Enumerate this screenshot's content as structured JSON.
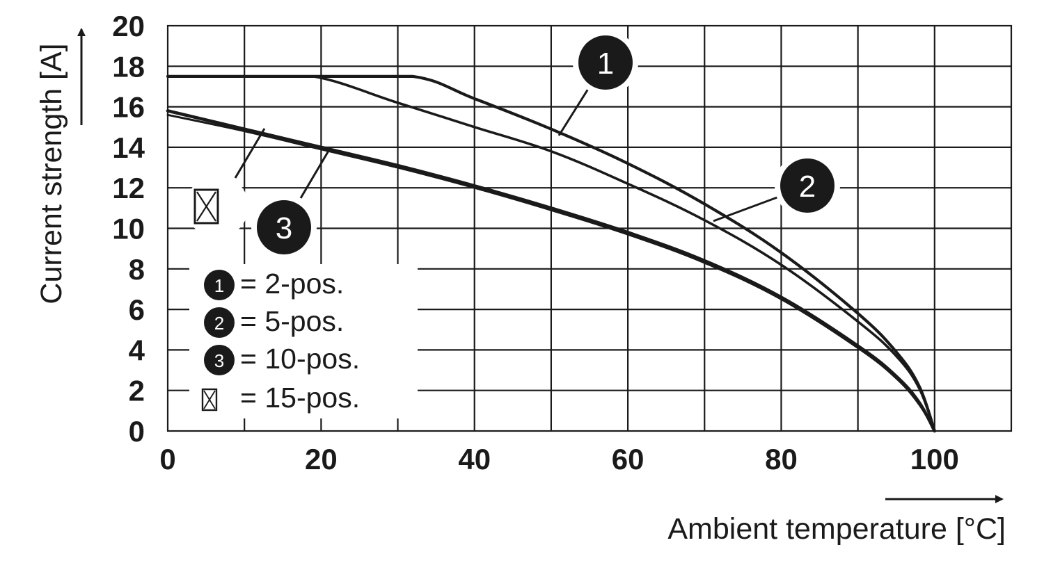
{
  "chart_data": {
    "type": "line",
    "xlabel": "Ambient temperature [°C]",
    "ylabel": "Current strength [A]",
    "xlim": [
      0,
      110
    ],
    "ylim": [
      0,
      20
    ],
    "x_ticks": [
      "0",
      "20",
      "40",
      "60",
      "80",
      "100"
    ],
    "y_ticks": [
      "0",
      "2",
      "4",
      "6",
      "8",
      "10",
      "12",
      "14",
      "16",
      "18",
      "20"
    ],
    "grid": true,
    "series": [
      {
        "marker": "1",
        "x": [
          0,
          10,
          20,
          32,
          40,
          50,
          60,
          70,
          80,
          90,
          95,
          98,
          100
        ],
        "y": [
          17.5,
          17.5,
          17.5,
          17.5,
          16.4,
          14.9,
          13.2,
          11.2,
          8.8,
          5.8,
          3.9,
          2.2,
          0
        ]
      },
      {
        "marker": "2",
        "x": [
          0,
          10,
          19,
          30,
          40,
          50,
          60,
          70,
          80,
          90,
          95,
          98,
          100
        ],
        "y": [
          17.5,
          17.5,
          17.5,
          16.2,
          15.0,
          13.8,
          12.2,
          10.4,
          8.2,
          5.4,
          3.7,
          2.1,
          0
        ]
      },
      {
        "marker": "3",
        "x": [
          0,
          10,
          20,
          30,
          40,
          50,
          60,
          70,
          80,
          90,
          95,
          98,
          100
        ],
        "y": [
          15.8,
          14.9,
          14.0,
          13.1,
          12.1,
          11.0,
          9.8,
          8.4,
          6.6,
          4.2,
          2.7,
          1.4,
          0
        ]
      },
      {
        "marker": "☒",
        "x": [
          0,
          10,
          20,
          30,
          40,
          50,
          60,
          70,
          80,
          90,
          95,
          98,
          100
        ],
        "y": [
          15.6,
          14.8,
          13.9,
          13.0,
          12.0,
          10.9,
          9.7,
          8.3,
          6.5,
          4.1,
          2.6,
          1.3,
          0
        ]
      }
    ],
    "legend": {
      "placement": "bottom-left",
      "entries": [
        {
          "marker": "1",
          "label": "= 2-pos."
        },
        {
          "marker": "2",
          "label": "= 5-pos."
        },
        {
          "marker": "3",
          "label": "= 10-pos."
        },
        {
          "marker": "☒",
          "label": "= 15-pos."
        }
      ]
    },
    "colors": {
      "ink": "#1a1a1a",
      "background": "#ffffff",
      "badge_text": "#ffffff"
    }
  }
}
